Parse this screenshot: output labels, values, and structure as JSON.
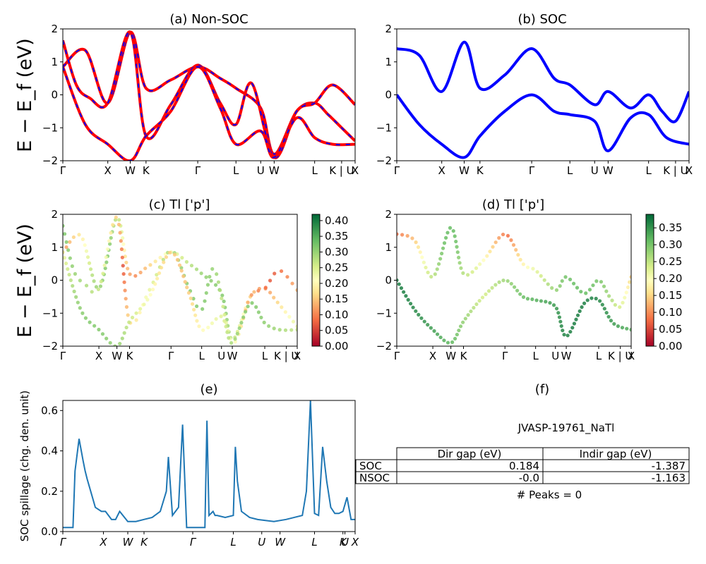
{
  "figure": {
    "panels": {
      "a": {
        "title": "(a) Non-SOC",
        "ylabel": "E − E_f (eV)"
      },
      "b": {
        "title": "(b) SOC"
      },
      "c": {
        "title": "(c)  Tl ['p']",
        "ylabel": "E − E_f (eV)"
      },
      "d": {
        "title": "(d) Tl ['p']"
      },
      "e": {
        "title": "(e)",
        "ylabel": "SOC spillage (chg. den. unit)"
      },
      "f": {
        "title": "(f)"
      }
    },
    "kpath_labels": [
      "Γ",
      "X",
      "W",
      "K",
      "Γ",
      "L",
      "U",
      "W",
      "L",
      "K | U",
      "X"
    ],
    "spillage_kpath_labels": [
      "Γ",
      "X",
      "W",
      "K",
      "Γ",
      "L",
      "U",
      "W",
      "L",
      "K",
      "U",
      "X"
    ],
    "energy_ticks": [
      "2",
      "1",
      "0",
      "−1",
      "−2"
    ],
    "colorbar_c": [
      "0.40",
      "0.35",
      "0.30",
      "0.25",
      "0.20",
      "0.15",
      "0.10",
      "0.05",
      "0.00"
    ],
    "colorbar_d": [
      "0.35",
      "0.30",
      "0.25",
      "0.20",
      "0.15",
      "0.10",
      "0.05",
      "0.00"
    ],
    "spillage_yticks": [
      "0.6",
      "0.4",
      "0.2",
      "0.0"
    ],
    "colors": {
      "non_soc_band": "#ff0000",
      "non_soc_dash": "#0000ff",
      "soc_band": "#0000ff",
      "spillage_line": "#1f77b4"
    },
    "table": {
      "id": "JVASP-19761_NaTl",
      "headers": [
        "Dir gap (eV)",
        "Indir gap (eV)"
      ],
      "rows": [
        {
          "label": "SOC",
          "dir": "0.184",
          "indir": "-1.387"
        },
        {
          "label": "NSOC",
          "dir": "-0.0",
          "indir": "-1.163"
        }
      ],
      "peaks": "# Peaks = 0"
    }
  },
  "chart_data": [
    {
      "type": "line",
      "title": "(a) Non-SOC",
      "ylabel": "E − E_f (eV)",
      "ylim": [
        -2,
        2
      ],
      "x_ticks": [
        "Γ",
        "X",
        "W",
        "K",
        "Γ",
        "L",
        "U",
        "W",
        "L",
        "K | U",
        "X"
      ],
      "x_tick_positions": [
        0,
        1,
        1.5,
        1.85,
        3.0,
        3.85,
        4.4,
        4.7,
        5.6,
        6.2,
        6.5
      ],
      "series": [
        {
          "x": [
            0,
            0.5,
            1.0,
            1.5,
            1.85,
            2.4,
            3.0,
            3.5,
            3.85,
            4.4,
            4.7,
            5.2,
            5.6,
            5.9,
            6.2,
            6.5
          ],
          "y": [
            0.85,
            1.35,
            -0.25,
            1.9,
            0.2,
            0.45,
            0.85,
            0.5,
            0.2,
            -0.4,
            -1.8,
            -0.5,
            -0.25,
            -0.6,
            -1.0,
            -1.4
          ]
        },
        {
          "x": [
            0,
            0.3,
            0.6,
            1.0,
            1.5,
            1.85,
            2.4,
            3.0,
            3.5,
            3.85,
            4.2,
            4.7,
            5.2,
            5.6,
            6.0,
            6.5
          ],
          "y": [
            1.65,
            0.3,
            -0.1,
            -0.25,
            1.9,
            -1.25,
            -0.3,
            0.9,
            -0.25,
            -0.9,
            0.35,
            -1.9,
            -0.5,
            -0.25,
            0.3,
            -0.3
          ]
        },
        {
          "x": [
            0,
            0.5,
            1.0,
            1.5,
            1.85,
            2.4,
            3.0,
            3.5,
            3.85,
            4.4,
            4.7,
            5.2,
            5.6,
            6.0,
            6.5
          ],
          "y": [
            0.85,
            -0.9,
            -1.5,
            -2.0,
            -1.25,
            -0.5,
            0.85,
            -0.4,
            -1.5,
            -1.1,
            -1.9,
            -0.7,
            -1.3,
            -1.5,
            -1.5
          ]
        }
      ]
    },
    {
      "type": "line",
      "title": "(b) SOC",
      "ylim": [
        -2,
        2
      ],
      "x_ticks": [
        "Γ",
        "X",
        "W",
        "K",
        "Γ",
        "L",
        "U",
        "W",
        "L",
        "K | U",
        "X"
      ],
      "series": [
        {
          "x": [
            0,
            0.5,
            1.0,
            1.5,
            1.85,
            2.4,
            3.0,
            3.5,
            3.85,
            4.4,
            4.7,
            5.2,
            5.6,
            5.9,
            6.2,
            6.5
          ],
          "y": [
            1.4,
            1.2,
            0.1,
            1.6,
            0.2,
            0.6,
            1.4,
            0.5,
            0.3,
            -0.3,
            0.1,
            -0.4,
            0.0,
            -0.5,
            -0.8,
            0.1
          ]
        },
        {
          "x": [
            0,
            0.5,
            1.0,
            1.5,
            1.85,
            2.4,
            3.0,
            3.5,
            3.85,
            4.4,
            4.7,
            5.2,
            5.6,
            6.0,
            6.5
          ],
          "y": [
            0.0,
            -0.9,
            -1.5,
            -1.9,
            -1.25,
            -0.5,
            0.0,
            -0.5,
            -0.6,
            -0.8,
            -1.7,
            -0.7,
            -0.6,
            -1.3,
            -1.5
          ]
        }
      ]
    },
    {
      "type": "scatter",
      "title": "(c)  Tl ['p']",
      "ylabel": "E − E_f (eV)",
      "ylim": [
        -2,
        2
      ],
      "colorbar_range": [
        0.0,
        0.42
      ],
      "x_ticks": [
        "Γ",
        "X",
        "W",
        "K",
        "Γ",
        "L",
        "U",
        "W",
        "L",
        "K | U",
        "X"
      ]
    },
    {
      "type": "scatter",
      "title": "(d) Tl ['p']",
      "ylim": [
        -2,
        2
      ],
      "colorbar_range": [
        0.0,
        0.39
      ],
      "x_ticks": [
        "Γ",
        "X",
        "W",
        "K",
        "Γ",
        "L",
        "U",
        "W",
        "L",
        "K | U",
        "X"
      ]
    },
    {
      "type": "line",
      "title": "(e)",
      "ylabel": "SOC spillage (chg. den. unit)",
      "ylim": [
        0.0,
        0.65
      ],
      "x_ticks": [
        "Γ",
        "X",
        "W",
        "K",
        "Γ",
        "L",
        "U",
        "W",
        "L",
        "K",
        "U",
        "X"
      ],
      "x_tick_positions": [
        0,
        1.0,
        1.6,
        2.0,
        3.2,
        4.2,
        4.9,
        5.35,
        6.2,
        6.9,
        6.95,
        7.2
      ],
      "series": [
        {
          "x": [
            0,
            0.25,
            0.3,
            0.4,
            0.5,
            0.55,
            0.6,
            0.8,
            0.95,
            1.05,
            1.2,
            1.3,
            1.4,
            1.6,
            1.8,
            2.0,
            2.2,
            2.4,
            2.55,
            2.6,
            2.7,
            2.85,
            2.95,
            3.05,
            3.5,
            3.55,
            3.6,
            3.7,
            3.75,
            3.8,
            4.0,
            4.2,
            4.25,
            4.3,
            4.4,
            4.6,
            4.8,
            5.2,
            5.5,
            5.9,
            6.0,
            6.1,
            6.2,
            6.3,
            6.4,
            6.5,
            6.6,
            6.7,
            6.8,
            6.9,
            7.0,
            7.1,
            7.2
          ],
          "y": [
            0.02,
            0.02,
            0.3,
            0.46,
            0.35,
            0.3,
            0.26,
            0.12,
            0.1,
            0.1,
            0.06,
            0.06,
            0.1,
            0.05,
            0.05,
            0.06,
            0.07,
            0.1,
            0.2,
            0.37,
            0.08,
            0.12,
            0.53,
            0.02,
            0.02,
            0.55,
            0.08,
            0.1,
            0.08,
            0.08,
            0.07,
            0.08,
            0.42,
            0.25,
            0.1,
            0.07,
            0.06,
            0.05,
            0.06,
            0.08,
            0.2,
            0.65,
            0.09,
            0.08,
            0.42,
            0.25,
            0.12,
            0.09,
            0.09,
            0.1,
            0.17,
            0.06,
            0.06
          ]
        }
      ]
    },
    {
      "type": "table",
      "title": "(f)",
      "headers": [
        "Dir gap (eV)",
        "Indir gap (eV)"
      ],
      "rows": [
        [
          "SOC",
          "0.184",
          "-1.387"
        ],
        [
          "NSOC",
          "-0.0",
          "-1.163"
        ]
      ],
      "caption": "JVASP-19761_NaTl",
      "footer": "# Peaks = 0"
    }
  ]
}
